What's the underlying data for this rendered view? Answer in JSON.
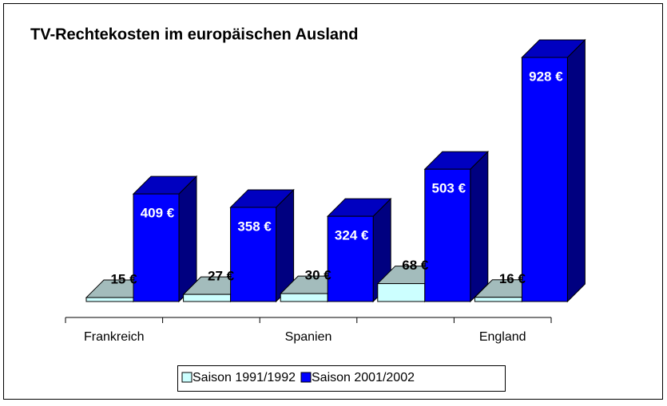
{
  "chart_data": {
    "type": "bar3d",
    "title": "TV-Rechtekosten im europäischen Ausland",
    "categories": [
      "Frankreich",
      null,
      "Spanien",
      null,
      "England"
    ],
    "series": [
      {
        "name": "Saison 1991/1992",
        "color": "#ccffff",
        "values": [
          15,
          27,
          30,
          68,
          16
        ],
        "value_labels": [
          "15 €",
          "27 €",
          "30 €",
          "68 €",
          "16 €"
        ]
      },
      {
        "name": "Saison 2001/2002",
        "color": "#0000ff",
        "values": [
          409,
          358,
          324,
          503,
          928
        ],
        "value_labels": [
          "409 €",
          "358 €",
          "324 €",
          "503 €",
          "928 €"
        ]
      }
    ],
    "legend": "bottom"
  }
}
